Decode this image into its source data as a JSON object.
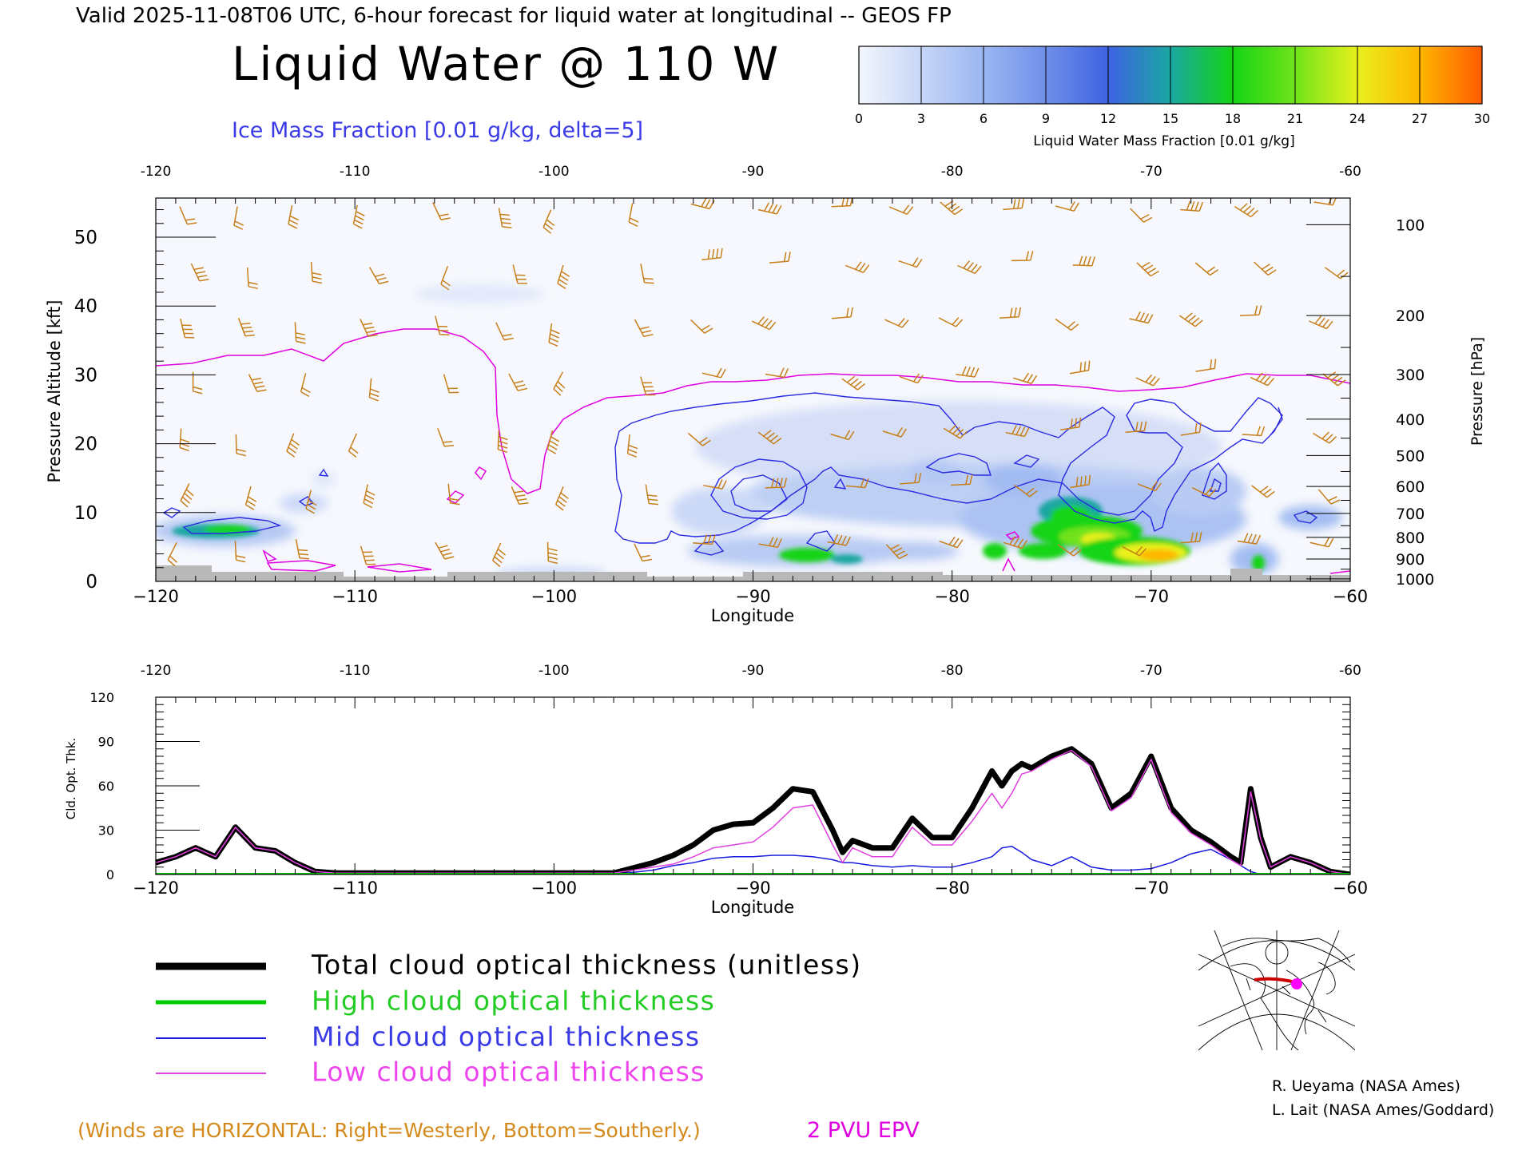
{
  "header": {
    "valid_line": "Valid 2025-11-08T06 UTC, 6-hour forecast for liquid water at longitudinal -- GEOS FP",
    "main_title": "Liquid Water @ 110 W",
    "ice_label": "Ice Mass Fraction [0.01 g/kg, delta=5]"
  },
  "colorbar": {
    "label": "Liquid Water Mass Fraction [0.01 g/kg]",
    "ticks": [
      "0",
      "3",
      "6",
      "9",
      "12",
      "15",
      "18",
      "21",
      "24",
      "27",
      "30"
    ],
    "colors": [
      "#f3f6fc",
      "#c7d6f7",
      "#9ab6f1",
      "#6f8fea",
      "#3e62e3",
      "#1aa7a2",
      "#14d414",
      "#6fe31a",
      "#e8f01c",
      "#ffb600",
      "#ff5a00"
    ]
  },
  "colors": {
    "ice_contour": "#2a2ae0",
    "epv_contour": "#e000e0",
    "wind_barb": "#c77f1a",
    "terrain": "#b8b8b8",
    "total_line": "#000000",
    "high_line": "#00cc00",
    "mid_line": "#1a1ae0",
    "low_line": "#e040e0"
  },
  "cross_section": {
    "top_lon_ticks": [
      "-120",
      "-110",
      "-100",
      "-90",
      "-80",
      "-70",
      "-60"
    ],
    "bottom_lon_ticks": [
      "−120",
      "−110",
      "−100",
      "−90",
      "−80",
      "−70",
      "−60"
    ],
    "xlabel": "Longitude",
    "left_ylabel": "Pressure Altitude [kft]",
    "left_ticks": [
      "0",
      "10",
      "20",
      "30",
      "40",
      "50"
    ],
    "right_ylabel": "Pressure [hPa]",
    "right_ticks": [
      "100",
      "200",
      "300",
      "400",
      "500",
      "600",
      "700",
      "800",
      "900",
      "1000"
    ]
  },
  "chart_data": {
    "type": "line",
    "title": "",
    "xlabel": "Longitude",
    "ylabel": "Cld. Opt. Thk.",
    "xlim": [
      -120,
      -60
    ],
    "ylim": [
      0,
      120
    ],
    "yticks": [
      "0",
      "30",
      "60",
      "90",
      "120"
    ],
    "top_lon_ticks": [
      "-120",
      "-110",
      "-100",
      "-90",
      "-80",
      "-70",
      "-60"
    ],
    "bottom_lon_ticks": [
      "−120",
      "−110",
      "−100",
      "−90",
      "−80",
      "−70",
      "−60"
    ],
    "x": [
      -120,
      -119,
      -118,
      -117,
      -116,
      -115,
      -114,
      -113,
      -112,
      -111,
      -110,
      -105,
      -100,
      -97,
      -95,
      -94,
      -93,
      -92,
      -91,
      -90,
      -89,
      -88,
      -87,
      -86,
      -85.5,
      -85,
      -84,
      -83,
      -82,
      -81,
      -80,
      -79,
      -78,
      -77.5,
      -77,
      -76.5,
      -76,
      -75,
      -74,
      -73,
      -72,
      -71,
      -70,
      -69,
      -68,
      -67,
      -66,
      -65.5,
      -65,
      -64.5,
      -64,
      -63,
      -62,
      -61,
      -60
    ],
    "series": [
      {
        "name": "Total cloud optical thickness (unitless)",
        "values": [
          8,
          12,
          18,
          12,
          32,
          18,
          16,
          8,
          2,
          1,
          1,
          1,
          1,
          1,
          8,
          13,
          20,
          30,
          34,
          35,
          45,
          58,
          56,
          30,
          15,
          23,
          18,
          18,
          38,
          25,
          25,
          45,
          70,
          60,
          70,
          75,
          72,
          80,
          85,
          75,
          45,
          55,
          80,
          45,
          30,
          22,
          12,
          8,
          58,
          25,
          5,
          12,
          8,
          2,
          0
        ]
      },
      {
        "name": "High cloud optical thickness",
        "values": [
          0,
          0,
          0,
          0,
          0,
          0,
          0,
          0,
          0,
          0,
          0,
          0,
          0,
          0,
          0,
          0,
          0,
          0,
          0,
          0,
          0,
          0,
          0,
          0,
          0,
          0,
          0,
          0,
          0,
          0,
          0,
          0,
          0,
          0,
          0,
          0,
          0,
          0,
          0,
          0,
          0,
          0,
          0,
          0,
          0,
          0,
          0,
          0,
          0,
          0,
          0,
          0,
          0,
          0,
          0
        ]
      },
      {
        "name": "Mid cloud optical thickness",
        "values": [
          0,
          0,
          0,
          0,
          0,
          0,
          0,
          0,
          0,
          0,
          0,
          0,
          0,
          0,
          3,
          6,
          8,
          11,
          12,
          12,
          13,
          13,
          12,
          10,
          8,
          8,
          6,
          5,
          6,
          5,
          5,
          8,
          12,
          18,
          19,
          15,
          10,
          6,
          12,
          5,
          3,
          3,
          4,
          8,
          14,
          17,
          10,
          6,
          2,
          0,
          0,
          0,
          0,
          0,
          0
        ]
      },
      {
        "name": "Low cloud optical thickness",
        "values": [
          8,
          12,
          18,
          12,
          32,
          18,
          16,
          8,
          2,
          1,
          1,
          1,
          1,
          1,
          5,
          7,
          12,
          18,
          20,
          22,
          32,
          45,
          47,
          20,
          8,
          18,
          12,
          12,
          32,
          20,
          20,
          36,
          55,
          45,
          55,
          68,
          70,
          78,
          84,
          73,
          43,
          52,
          78,
          42,
          28,
          20,
          10,
          6,
          56,
          24,
          5,
          12,
          8,
          2,
          0
        ]
      }
    ]
  },
  "legend": {
    "total": "Total cloud optical thickness (unitless)",
    "high": "High cloud optical thickness",
    "mid": "Mid cloud optical thickness",
    "low": "Low cloud optical thickness"
  },
  "footer": {
    "winds_note": "(Winds are HORIZONTAL: Right=Westerly, Bottom=Southerly.)",
    "epv_note": "2 PVU EPV",
    "credit1": "R. Ueyama (NASA Ames)",
    "credit2": "L. Lait (NASA Ames/Goddard)"
  }
}
